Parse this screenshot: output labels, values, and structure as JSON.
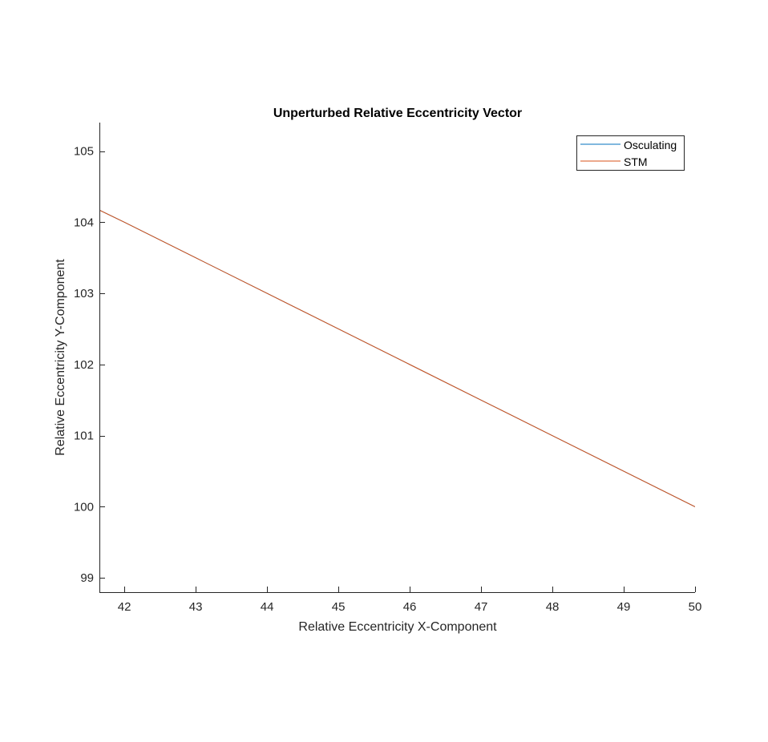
{
  "chart_data": {
    "type": "line",
    "title": "Unperturbed Relative Eccentricity Vector",
    "xlabel": "Relative Eccentricity X-Component",
    "ylabel": "Relative Eccentricity Y-Component",
    "xlim": [
      41.65,
      50
    ],
    "ylim": [
      98.8,
      105.4
    ],
    "xticks": [
      42,
      43,
      44,
      45,
      46,
      47,
      48,
      49,
      50
    ],
    "yticks": [
      99,
      100,
      101,
      102,
      103,
      104,
      105
    ],
    "grid": false,
    "legend_location": "top-right",
    "series": [
      {
        "name": "Osculating",
        "color": "#0072BD",
        "x": [
          41.65,
          42,
          43,
          44,
          45,
          46,
          47,
          48,
          49,
          50
        ],
        "y": [
          104.17,
          104.0,
          103.5,
          103.0,
          102.5,
          102.0,
          101.5,
          101.0,
          100.5,
          100.0
        ]
      },
      {
        "name": "STM",
        "color": "#D95319",
        "x": [
          41.65,
          42,
          43,
          44,
          45,
          46,
          47,
          48,
          49,
          50
        ],
        "y": [
          104.17,
          104.0,
          103.5,
          103.0,
          102.5,
          102.0,
          101.5,
          101.0,
          100.5,
          100.0
        ]
      }
    ]
  }
}
